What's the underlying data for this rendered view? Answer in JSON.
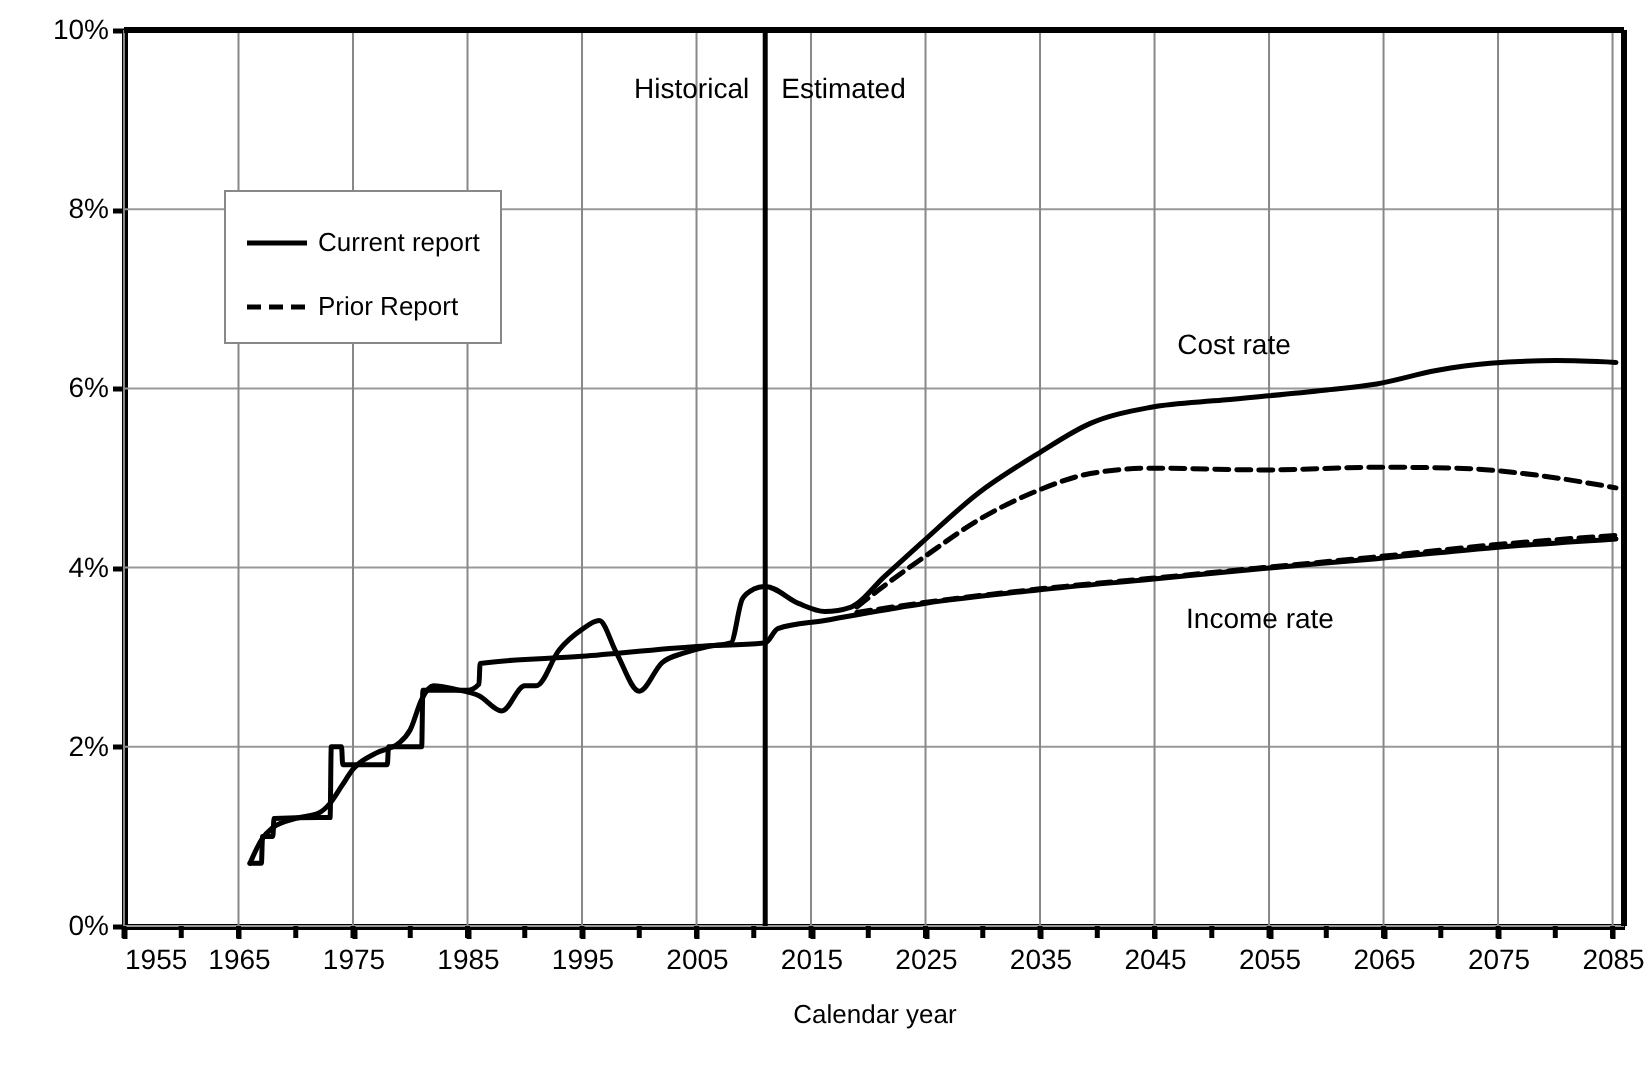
{
  "chart_data": {
    "type": "line",
    "xlabel": "Calendar year",
    "xlim": [
      1955,
      2086
    ],
    "ylim": [
      0,
      10
    ],
    "xticks": [
      1955,
      {
        "value": 1960,
        "label": null
      },
      1965,
      {
        "value": 1970,
        "label": null
      },
      1975,
      {
        "value": 1980,
        "label": null
      },
      1985,
      {
        "value": 1990,
        "label": null
      },
      1995,
      {
        "value": 2000,
        "label": null
      },
      2005,
      {
        "value": 2010,
        "label": null
      },
      2015,
      {
        "value": 2020,
        "label": null
      },
      2025,
      {
        "value": 2030,
        "label": null
      },
      2035,
      {
        "value": 2040,
        "label": null
      },
      2045,
      {
        "value": 2050,
        "label": null
      },
      2055,
      {
        "value": 2060,
        "label": null
      },
      2065,
      {
        "value": 2070,
        "label": null
      },
      2075,
      {
        "value": 2080,
        "label": null
      },
      2085
    ],
    "yticks": [
      {
        "value": 0,
        "label": "0%"
      },
      {
        "value": 2,
        "label": "2%"
      },
      {
        "value": 4,
        "label": "4%"
      },
      {
        "value": 6,
        "label": "6%"
      },
      {
        "value": 8,
        "label": "8%"
      },
      {
        "value": 10,
        "label": "10%"
      }
    ],
    "grid": true,
    "legend": "top left",
    "series": [
      {
        "name": "Current report",
        "color": "#000000",
        "line_style": "solid",
        "x": [
          1966,
          1967,
          1968,
          1970,
          1972,
          1973,
          1974,
          1975,
          1977,
          1979,
          1980,
          1981,
          1982,
          1984,
          1986,
          1988,
          1990,
          1991,
          1993,
          1995,
          1996.5,
          1998,
          2000,
          2002,
          2004,
          2006,
          2008,
          2009,
          2010,
          2011,
          2013.9,
          2016.2,
          2018.5,
          2021.4,
          2024.6,
          2029.6,
          2034.8,
          2039.4,
          2044.7,
          2051,
          2059.8,
          2064.4,
          2069.6,
          2074.3,
          2080.1,
          2085.3
        ],
        "values": [
          0.7,
          0.96,
          1.1,
          1.2,
          1.26,
          1.37,
          1.56,
          1.75,
          1.93,
          2.04,
          2.19,
          2.53,
          2.68,
          2.64,
          2.57,
          2.4,
          2.68,
          2.68,
          3.08,
          3.31,
          3.41,
          3.05,
          2.62,
          2.94,
          3.05,
          3.12,
          3.16,
          3.65,
          3.76,
          3.79,
          3.6,
          3.51,
          3.56,
          3.9,
          4.27,
          4.83,
          5.27,
          5.61,
          5.79,
          5.87,
          5.98,
          6.05,
          6.2,
          6.28,
          6.31,
          6.29
        ]
      },
      {
        "color": "#000000",
        "line_style": "solid",
        "x": [
          1966,
          1967,
          1967.1,
          1968,
          1968.1,
          1972,
          1973,
          1973.1,
          1974,
          1974.1,
          1978,
          1978.1,
          1980,
          1981,
          1981.1,
          1985,
          1986,
          1986.1,
          1995,
          2005,
          2011,
          2012.1,
          2016.2,
          2024.9,
          2034.8,
          2044.7,
          2054.5,
          2064.4,
          2074.3,
          2085.3
        ],
        "values": [
          0.7,
          0.7,
          1.0,
          1.0,
          1.2,
          1.21,
          1.21,
          2.0,
          2.0,
          1.8,
          1.8,
          2.0,
          2.0,
          2.0,
          2.63,
          2.63,
          2.7,
          2.93,
          3.01,
          3.12,
          3.16,
          3.32,
          3.41,
          3.6,
          3.75,
          3.87,
          3.99,
          4.1,
          4.22,
          4.32
        ]
      },
      {
        "name": "Prior Report",
        "color": "#000000",
        "line_style": "dashed",
        "x": [
          2019,
          2020.9,
          2024.9,
          2029.6,
          2034.8,
          2039.4,
          2044.7,
          2054.5,
          2064.4,
          2071.4,
          2077.2,
          2085.3
        ],
        "values": [
          3.56,
          3.75,
          4.12,
          4.53,
          4.86,
          5.05,
          5.11,
          5.09,
          5.12,
          5.11,
          5.05,
          4.89
        ]
      },
      {
        "color": "#000000",
        "line_style": "dashed",
        "x": [
          2019,
          2024.9,
          2034.8,
          2044.7,
          2054.5,
          2064.4,
          2074.3,
          2085.3
        ],
        "values": [
          3.5,
          3.61,
          3.76,
          3.88,
          4.0,
          4.12,
          4.25,
          4.36
        ]
      }
    ],
    "ref_lines": [
      {
        "axis": "x",
        "value": 2011,
        "color": "#000000"
      }
    ],
    "annotations": [
      "Historical",
      "Estimated",
      "Cost rate",
      "Income rate"
    ]
  }
}
